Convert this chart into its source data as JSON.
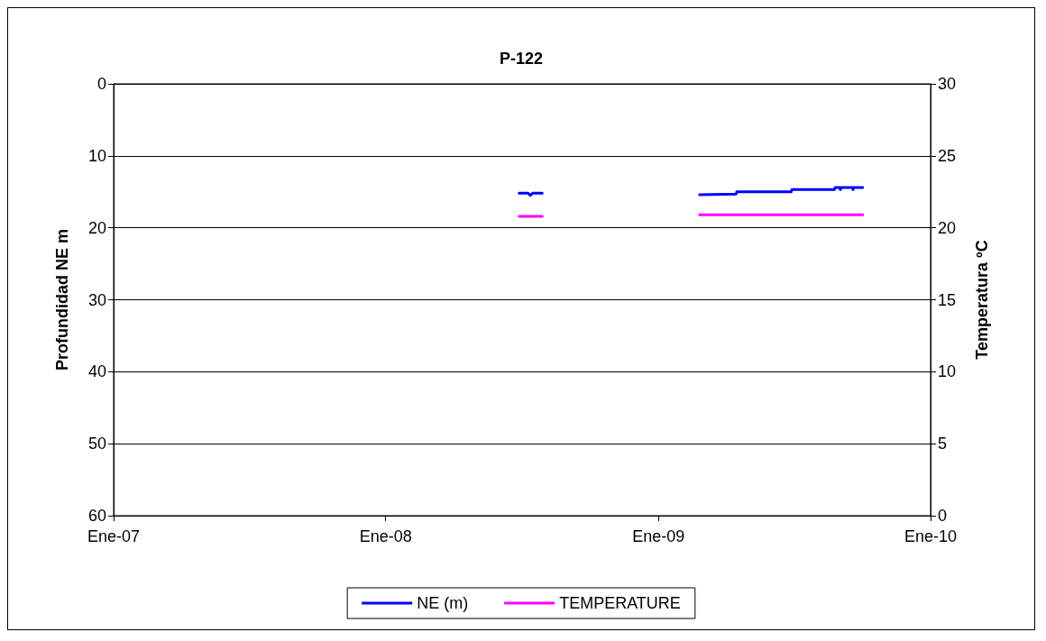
{
  "chart_data": {
    "type": "line",
    "title": "P-122",
    "ylabel": "Profundidad NE m",
    "y2label": "Temperatura ºC",
    "xlim": [
      "2007-01-01",
      "2010-01-01"
    ],
    "xticks": [
      {
        "value": "2007-01-01",
        "label": "Ene-07"
      },
      {
        "value": "2008-01-01",
        "label": "Ene-08"
      },
      {
        "value": "2009-01-01",
        "label": "Ene-09"
      },
      {
        "value": "2010-01-01",
        "label": "Ene-10"
      }
    ],
    "ylim": [
      60,
      0
    ],
    "yticks": [
      0,
      10,
      20,
      30,
      40,
      50,
      60
    ],
    "y2lim": [
      0,
      30
    ],
    "y2ticks": [
      0,
      5,
      10,
      15,
      20,
      25,
      30
    ],
    "grid": "y",
    "legend": "bottom",
    "marker": "none",
    "line_style": "solid",
    "series": [
      {
        "name": "NE (m)",
        "color": "#0000ff",
        "x": [
          "2008-06-28",
          "2008-07-10",
          "2008-07-13",
          "2008-07-16",
          "2008-07-29",
          "2008-12-01",
          "2009-02-25",
          "2009-04-15",
          "2009-04-16",
          "2009-06-28",
          "2009-06-29",
          "2009-08-25",
          "2009-08-26",
          "2009-09-01",
          "2009-09-02",
          "2009-09-03",
          "2009-09-18",
          "2009-09-19",
          "2009-09-20",
          "2009-10-02"
        ],
        "values": [
          15.2,
          15.2,
          15.5,
          15.2,
          15.2,
          null,
          15.4,
          15.3,
          15.0,
          15.0,
          14.7,
          14.7,
          14.4,
          14.4,
          14.7,
          14.4,
          14.4,
          14.7,
          14.4,
          14.4
        ]
      },
      {
        "name": "TEMPERATURE",
        "color": "#ff00ff",
        "axis": "y2",
        "x": [
          "2008-06-28",
          "2008-07-29",
          "2008-12-01",
          "2009-02-25",
          "2009-10-02"
        ],
        "values": [
          20.8,
          20.8,
          null,
          20.9,
          20.9
        ]
      }
    ]
  }
}
